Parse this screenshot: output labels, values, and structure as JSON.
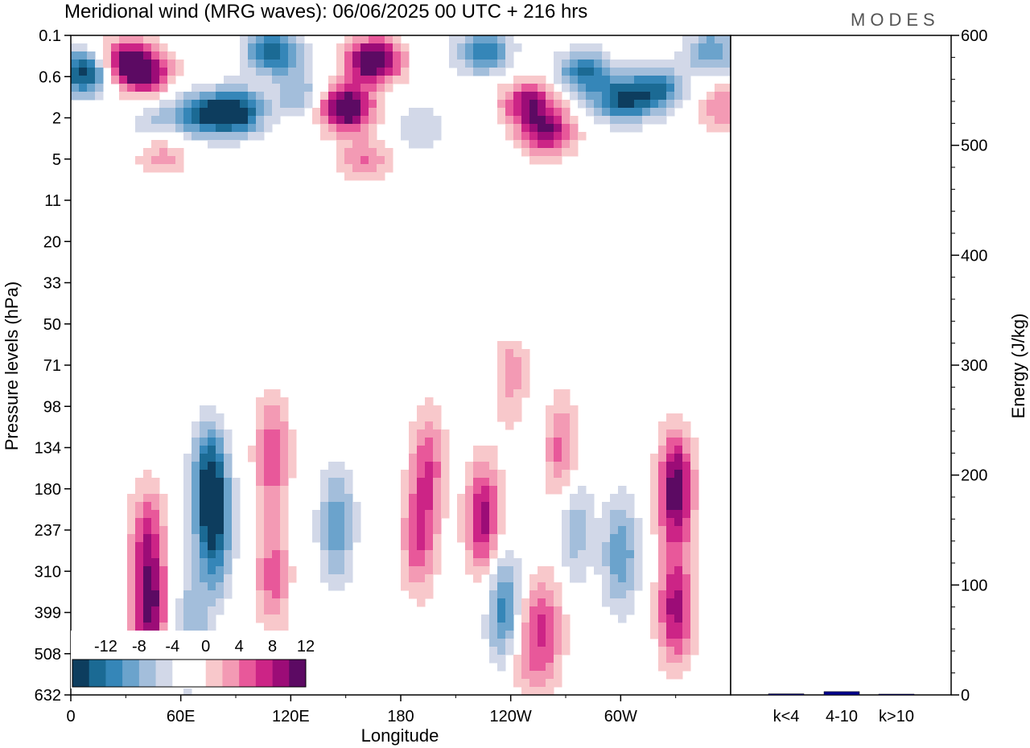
{
  "header": {
    "title": "Meridional wind (MRG waves):  06/06/2025  00 UTC  + 216 hrs",
    "brand": "MODES"
  },
  "chart_data": [
    {
      "type": "heatmap",
      "title": "Meridional wind (MRG waves):  06/06/2025  00 UTC  + 216 hrs",
      "xlabel": "Longitude",
      "ylabel": "Pressure levels (hPa)",
      "x_ticks": [
        "0",
        "60E",
        "120E",
        "180",
        "120W",
        "60W"
      ],
      "x_tick_degrees": [
        0,
        60,
        120,
        180,
        240,
        300
      ],
      "xlim": [
        0,
        360
      ],
      "y_ticks": [
        "0.1",
        "0.6",
        "2",
        "5",
        "11",
        "20",
        "33",
        "50",
        "71",
        "98",
        "134",
        "180",
        "237",
        "310",
        "399",
        "508",
        "632"
      ],
      "colorbar": {
        "labels": [
          "-12",
          "-8",
          "-4",
          "0",
          "4",
          "8",
          "12"
        ],
        "colors": [
          "#0d3d5e",
          "#1b6a94",
          "#3586b8",
          "#6ba3cc",
          "#a3bedb",
          "#d2d8e8",
          "#ffffff",
          "#ffffff",
          "#f8c8cb",
          "#f39ab4",
          "#e8589a",
          "#cc2486",
          "#9c0c77",
          "#5c0a63"
        ]
      },
      "features": [
        {
          "lon": 8,
          "lev": 0.5,
          "v": -14
        },
        {
          "lon": 28,
          "lev": 0.3,
          "v": 10
        },
        {
          "lon": 40,
          "lev": 0.5,
          "v": 12
        },
        {
          "lon": 45,
          "lev": 2.2,
          "v": -4
        },
        {
          "lon": 50,
          "lev": 4.5,
          "v": 5
        },
        {
          "lon": 70,
          "lev": 1.8,
          "v": -10
        },
        {
          "lon": 90,
          "lev": 1.7,
          "v": -14
        },
        {
          "lon": 110,
          "lev": 0.2,
          "v": -12
        },
        {
          "lon": 125,
          "lev": 1.0,
          "v": -6
        },
        {
          "lon": 150,
          "lev": 1.5,
          "v": 16
        },
        {
          "lon": 165,
          "lev": 0.3,
          "v": 16
        },
        {
          "lon": 160,
          "lev": 5.0,
          "v": 6
        },
        {
          "lon": 190,
          "lev": 2.5,
          "v": -4
        },
        {
          "lon": 225,
          "lev": 0.2,
          "v": -10
        },
        {
          "lon": 250,
          "lev": 1.3,
          "v": 11
        },
        {
          "lon": 260,
          "lev": 2.8,
          "v": 11
        },
        {
          "lon": 280,
          "lev": 0.5,
          "v": -10
        },
        {
          "lon": 300,
          "lev": 1.2,
          "v": -11
        },
        {
          "lon": 320,
          "lev": 0.9,
          "v": -10
        },
        {
          "lon": 350,
          "lev": 0.2,
          "v": -8
        },
        {
          "lon": 355,
          "lev": 1.5,
          "v": 6
        },
        {
          "lon": 42,
          "lev": 250,
          "v": 8
        },
        {
          "lon": 43,
          "lev": 400,
          "v": 12
        },
        {
          "lon": 76,
          "lev": 170,
          "v": -13
        },
        {
          "lon": 78,
          "lev": 260,
          "v": -9
        },
        {
          "lon": 65,
          "lev": 450,
          "v": -6
        },
        {
          "lon": 110,
          "lev": 140,
          "v": 8
        },
        {
          "lon": 110,
          "lev": 320,
          "v": 7
        },
        {
          "lon": 145,
          "lev": 230,
          "v": -8
        },
        {
          "lon": 190,
          "lev": 250,
          "v": 8
        },
        {
          "lon": 195,
          "lev": 150,
          "v": 7
        },
        {
          "lon": 225,
          "lev": 220,
          "v": 11
        },
        {
          "lon": 237,
          "lev": 390,
          "v": -10
        },
        {
          "lon": 248,
          "lev": 480,
          "v": 6
        },
        {
          "lon": 260,
          "lev": 440,
          "v": 7
        },
        {
          "lon": 268,
          "lev": 140,
          "v": 7
        },
        {
          "lon": 275,
          "lev": 230,
          "v": -6
        },
        {
          "lon": 300,
          "lev": 280,
          "v": -8
        },
        {
          "lon": 330,
          "lev": 180,
          "v": 14
        },
        {
          "lon": 330,
          "lev": 390,
          "v": 11
        },
        {
          "lon": 240,
          "lev": 75,
          "v": 5
        }
      ]
    },
    {
      "type": "bar",
      "categories": [
        "k<4",
        "4-10",
        "k>10"
      ],
      "values": [
        1,
        3,
        0.5
      ],
      "ylabel": "Energy (J/kg)",
      "ylim": [
        0,
        600
      ],
      "y_ticks": [
        "0",
        "100",
        "200",
        "300",
        "400",
        "500",
        "600"
      ],
      "bar_colors": [
        "#000080",
        "#00008b",
        "#000080"
      ]
    }
  ]
}
